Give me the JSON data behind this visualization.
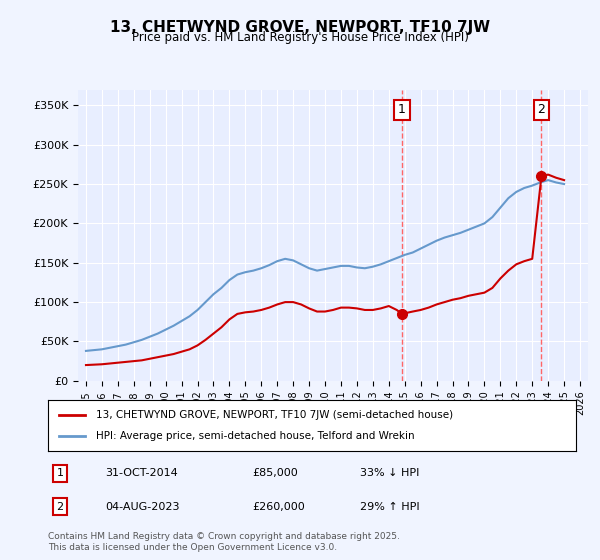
{
  "title": "13, CHETWYND GROVE, NEWPORT, TF10 7JW",
  "subtitle": "Price paid vs. HM Land Registry's House Price Index (HPI)",
  "ylabel": "",
  "xlabel": "",
  "background_color": "#f0f4ff",
  "plot_bg_color": "#e8eeff",
  "grid_color": "#ffffff",
  "red_line_label": "13, CHETWYND GROVE, NEWPORT, TF10 7JW (semi-detached house)",
  "blue_line_label": "HPI: Average price, semi-detached house, Telford and Wrekin",
  "annotation1_label": "1",
  "annotation1_date": "31-OCT-2014",
  "annotation1_price": "£85,000",
  "annotation1_hpi": "33% ↓ HPI",
  "annotation2_label": "2",
  "annotation2_date": "04-AUG-2023",
  "annotation2_price": "£260,000",
  "annotation2_hpi": "29% ↑ HPI",
  "footnote": "Contains HM Land Registry data © Crown copyright and database right 2025.\nThis data is licensed under the Open Government Licence v3.0.",
  "yticks": [
    0,
    50000,
    100000,
    150000,
    200000,
    250000,
    300000,
    350000
  ],
  "ytick_labels": [
    "£0",
    "£50K",
    "£100K",
    "£150K",
    "£200K",
    "£250K",
    "£300K",
    "£350K"
  ],
  "vline1_x": 2014.83,
  "vline2_x": 2023.58,
  "marker1_x": 2014.83,
  "marker1_y": 85000,
  "marker2_x": 2023.58,
  "marker2_y": 260000,
  "red_color": "#cc0000",
  "blue_color": "#6699cc",
  "vline_color": "#ff6666",
  "red_years": [
    1995.0,
    1995.5,
    1996.0,
    1996.5,
    1997.0,
    1997.5,
    1998.0,
    1998.5,
    1999.0,
    1999.5,
    2000.0,
    2000.5,
    2001.0,
    2001.5,
    2002.0,
    2002.5,
    2003.0,
    2003.5,
    2004.0,
    2004.5,
    2005.0,
    2005.5,
    2006.0,
    2006.5,
    2007.0,
    2007.5,
    2008.0,
    2008.5,
    2009.0,
    2009.5,
    2010.0,
    2010.5,
    2011.0,
    2011.5,
    2012.0,
    2012.5,
    2013.0,
    2013.5,
    2014.0,
    2014.5,
    2014.83,
    2015.5,
    2016.0,
    2016.5,
    2017.0,
    2017.5,
    2018.0,
    2018.5,
    2019.0,
    2019.5,
    2020.0,
    2020.5,
    2021.0,
    2021.5,
    2022.0,
    2022.5,
    2023.0,
    2023.58,
    2024.0,
    2024.5,
    2025.0
  ],
  "red_values": [
    20000,
    20500,
    21000,
    22000,
    23000,
    24000,
    25000,
    26000,
    28000,
    30000,
    32000,
    34000,
    37000,
    40000,
    45000,
    52000,
    60000,
    68000,
    78000,
    85000,
    87000,
    88000,
    90000,
    93000,
    97000,
    100000,
    100000,
    97000,
    92000,
    88000,
    88000,
    90000,
    93000,
    93000,
    92000,
    90000,
    90000,
    92000,
    95000,
    90000,
    85000,
    88000,
    90000,
    93000,
    97000,
    100000,
    103000,
    105000,
    108000,
    110000,
    112000,
    118000,
    130000,
    140000,
    148000,
    152000,
    155000,
    260000,
    262000,
    258000,
    255000
  ],
  "blue_years": [
    1995.0,
    1995.5,
    1996.0,
    1996.5,
    1997.0,
    1997.5,
    1998.0,
    1998.5,
    1999.0,
    1999.5,
    2000.0,
    2000.5,
    2001.0,
    2001.5,
    2002.0,
    2002.5,
    2003.0,
    2003.5,
    2004.0,
    2004.5,
    2005.0,
    2005.5,
    2006.0,
    2006.5,
    2007.0,
    2007.5,
    2008.0,
    2008.5,
    2009.0,
    2009.5,
    2010.0,
    2010.5,
    2011.0,
    2011.5,
    2012.0,
    2012.5,
    2013.0,
    2013.5,
    2014.0,
    2014.5,
    2015.0,
    2015.5,
    2016.0,
    2016.5,
    2017.0,
    2017.5,
    2018.0,
    2018.5,
    2019.0,
    2019.5,
    2020.0,
    2020.5,
    2021.0,
    2021.5,
    2022.0,
    2022.5,
    2023.0,
    2023.5,
    2024.0,
    2024.5,
    2025.0
  ],
  "blue_values": [
    38000,
    39000,
    40000,
    42000,
    44000,
    46000,
    49000,
    52000,
    56000,
    60000,
    65000,
    70000,
    76000,
    82000,
    90000,
    100000,
    110000,
    118000,
    128000,
    135000,
    138000,
    140000,
    143000,
    147000,
    152000,
    155000,
    153000,
    148000,
    143000,
    140000,
    142000,
    144000,
    146000,
    146000,
    144000,
    143000,
    145000,
    148000,
    152000,
    156000,
    160000,
    163000,
    168000,
    173000,
    178000,
    182000,
    185000,
    188000,
    192000,
    196000,
    200000,
    208000,
    220000,
    232000,
    240000,
    245000,
    248000,
    252000,
    255000,
    252000,
    250000
  ],
  "xlim": [
    1994.5,
    2026.5
  ],
  "ylim": [
    0,
    370000
  ],
  "xticks": [
    1995,
    1996,
    1997,
    1998,
    1999,
    2000,
    2001,
    2002,
    2003,
    2004,
    2005,
    2006,
    2007,
    2008,
    2009,
    2010,
    2011,
    2012,
    2013,
    2014,
    2015,
    2016,
    2017,
    2018,
    2019,
    2020,
    2021,
    2022,
    2023,
    2024,
    2025,
    2026
  ]
}
